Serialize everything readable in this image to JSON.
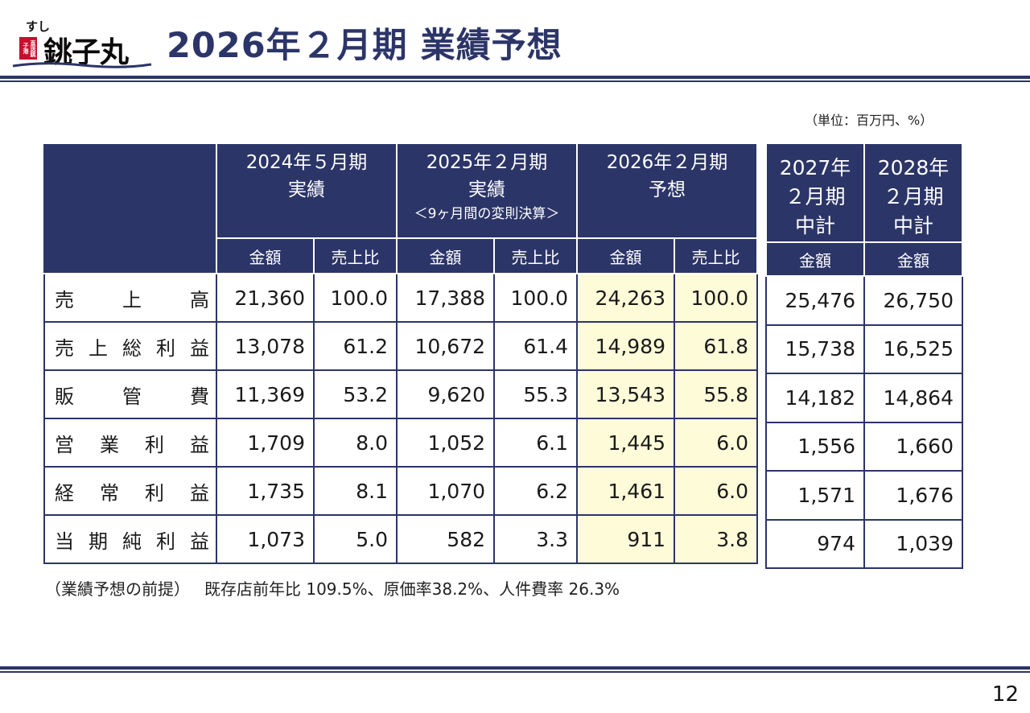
{
  "header": {
    "logo_kana": "すし",
    "logo_name": "銚子丸",
    "logo_stamp": "直送銚子港",
    "title": "2026年２月期 業績予想"
  },
  "unit_note": "（単位：百万円、%）",
  "main_table": {
    "columns": [
      {
        "line1": "2024年５月期",
        "line2": "実績",
        "note": ""
      },
      {
        "line1": "2025年２月期",
        "line2": "実績",
        "note": "＜9ヶ月間の変則決算＞"
      },
      {
        "line1": "2026年２月期",
        "line2": "予想",
        "note": ""
      }
    ],
    "sub_amount": "金額",
    "sub_ratio": "売上比",
    "rows": [
      {
        "label": "売上高",
        "v": [
          "21,360",
          "100.0",
          "17,388",
          "100.0",
          "24,263",
          "100.0"
        ]
      },
      {
        "label": "売上総利益",
        "v": [
          "13,078",
          "61.2",
          "10,672",
          "61.4",
          "14,989",
          "61.8"
        ]
      },
      {
        "label": "販管費",
        "v": [
          "11,369",
          "53.2",
          "9,620",
          "55.3",
          "13,543",
          "55.8"
        ]
      },
      {
        "label": "営業利益",
        "v": [
          "1,709",
          "8.0",
          "1,052",
          "6.1",
          "1,445",
          "6.0"
        ]
      },
      {
        "label": "経常利益",
        "v": [
          "1,735",
          "8.1",
          "1,070",
          "6.2",
          "1,461",
          "6.0"
        ]
      },
      {
        "label": "当期純利益",
        "v": [
          "1,073",
          "5.0",
          "582",
          "3.3",
          "911",
          "3.8"
        ]
      }
    ]
  },
  "side_table": {
    "columns": [
      {
        "line1": "2027年",
        "line2": "２月期",
        "line3": "中計"
      },
      {
        "line1": "2028年",
        "line2": "２月期",
        "line3": "中計"
      }
    ],
    "sub_amount": "金額",
    "rows": [
      [
        "25,476",
        "26,750"
      ],
      [
        "15,738",
        "16,525"
      ],
      [
        "14,182",
        "14,864"
      ],
      [
        "1,556",
        "1,660"
      ],
      [
        "1,571",
        "1,676"
      ],
      [
        "974",
        "1,039"
      ]
    ]
  },
  "premise": {
    "label": "（業績予想の前提）",
    "text": "既存店前年比 109.5%、原価率38.2%、人件費率 26.3%"
  },
  "page_number": "12",
  "colors": {
    "navy": "#2c3568",
    "highlight": "#fdfbd8",
    "logo_red": "#c8102e"
  }
}
